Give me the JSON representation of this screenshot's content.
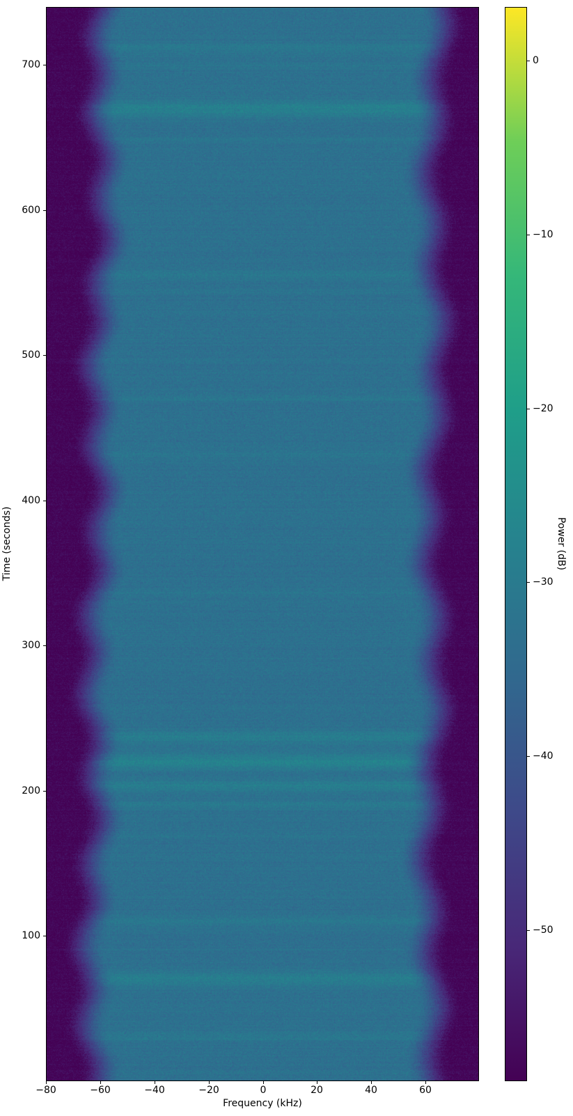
{
  "chart_data": {
    "type": "heatmap",
    "subtype": "spectrogram-waterfall",
    "title": "",
    "xlabel": "Frequency (kHz)",
    "ylabel": "Time (seconds)",
    "colorbar_label": "Power (dB)",
    "x_range_khz": [
      -80,
      79.7
    ],
    "y_range_s": [
      0,
      740
    ],
    "value_range_db": [
      -58.7,
      3.1
    ],
    "x_ticks": {
      "values": [
        -80,
        -60,
        -40,
        -20,
        0,
        20,
        40,
        60
      ],
      "labels": [
        "−80",
        "−60",
        "−40",
        "−20",
        "0",
        "20",
        "40",
        "60"
      ]
    },
    "y_ticks": {
      "values": [
        100,
        200,
        300,
        400,
        500,
        600,
        700
      ],
      "labels": [
        "100",
        "200",
        "300",
        "400",
        "500",
        "600",
        "700"
      ]
    },
    "colorbar_ticks": {
      "values": [
        0,
        -10,
        -20,
        -30,
        -40,
        -50
      ],
      "labels": [
        "0",
        "−10",
        "−20",
        "−30",
        "−40",
        "−50"
      ]
    },
    "colormap": "viridis",
    "colormap_stops": [
      {
        "pos": 0.0,
        "color": "#440154"
      },
      {
        "pos": 0.125,
        "color": "#482878"
      },
      {
        "pos": 0.25,
        "color": "#3e4989"
      },
      {
        "pos": 0.375,
        "color": "#31688e"
      },
      {
        "pos": 0.5,
        "color": "#26828e"
      },
      {
        "pos": 0.625,
        "color": "#1f9e89"
      },
      {
        "pos": 0.75,
        "color": "#35b779"
      },
      {
        "pos": 0.875,
        "color": "#6ece58"
      },
      {
        "pos": 1.0,
        "color": "#fde725"
      }
    ],
    "signal_model": {
      "noise_floor_db": -58,
      "passband_power_db": -33,
      "passband_flat_khz": [
        -72,
        70
      ],
      "edge_transition_khz": 17,
      "pixel_noise_sigma_db": 2.3
    },
    "time_bands": [
      {
        "time_s": 712,
        "boost_db": 2.5,
        "width_s": 5
      },
      {
        "time_s": 700,
        "boost_db": 1.3,
        "width_s": 3
      },
      {
        "time_s": 670,
        "boost_db": 4.5,
        "width_s": 8
      },
      {
        "time_s": 648,
        "boost_db": 1.3,
        "width_s": 3
      },
      {
        "time_s": 556,
        "boost_db": 2.3,
        "width_s": 4
      },
      {
        "time_s": 545,
        "boost_db": 1.2,
        "width_s": 3
      },
      {
        "time_s": 470,
        "boost_db": 1.5,
        "width_s": 3
      },
      {
        "time_s": 432,
        "boost_db": 1.5,
        "width_s": 3
      },
      {
        "time_s": 336,
        "boost_db": 1.3,
        "width_s": 3
      },
      {
        "time_s": 237,
        "boost_db": 3.8,
        "width_s": 6
      },
      {
        "time_s": 220,
        "boost_db": 5.0,
        "width_s": 8
      },
      {
        "time_s": 203,
        "boost_db": 3.8,
        "width_s": 6
      },
      {
        "time_s": 190,
        "boost_db": 2.5,
        "width_s": 4
      },
      {
        "time_s": 168,
        "boost_db": 1.3,
        "width_s": 3
      },
      {
        "time_s": 110,
        "boost_db": 2.3,
        "width_s": 4
      },
      {
        "time_s": 70,
        "boost_db": 4.0,
        "width_s": 7
      },
      {
        "time_s": 30,
        "boost_db": 2.3,
        "width_s": 5
      }
    ]
  }
}
